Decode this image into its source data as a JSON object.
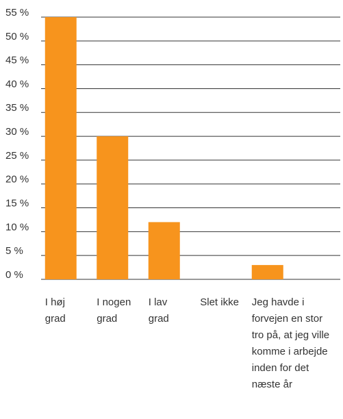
{
  "chart_data": {
    "type": "bar",
    "categories": [
      "I høj grad",
      "I nogen grad",
      "I lav grad",
      "Slet ikke",
      "Jeg havde i forvejen en stor tro på, at jeg ville komme i arbejde inden for det næste år"
    ],
    "values": [
      55,
      30,
      12,
      0,
      3
    ],
    "color": "#f7941d",
    "ylim": [
      0,
      55
    ],
    "yticks": [
      {
        "value": 0,
        "label": "0 %"
      },
      {
        "value": 5,
        "label": "5 %"
      },
      {
        "value": 10,
        "label": "10 %"
      },
      {
        "value": 15,
        "label": "15 %"
      },
      {
        "value": 20,
        "label": "20 %"
      },
      {
        "value": 25,
        "label": "25 %"
      },
      {
        "value": 30,
        "label": "30 %"
      },
      {
        "value": 35,
        "label": "35 %"
      },
      {
        "value": 40,
        "label": "40 %"
      },
      {
        "value": 45,
        "label": "45 %"
      },
      {
        "value": 50,
        "label": "50 %"
      },
      {
        "value": 55,
        "label": "55 %"
      }
    ],
    "grid": true
  }
}
